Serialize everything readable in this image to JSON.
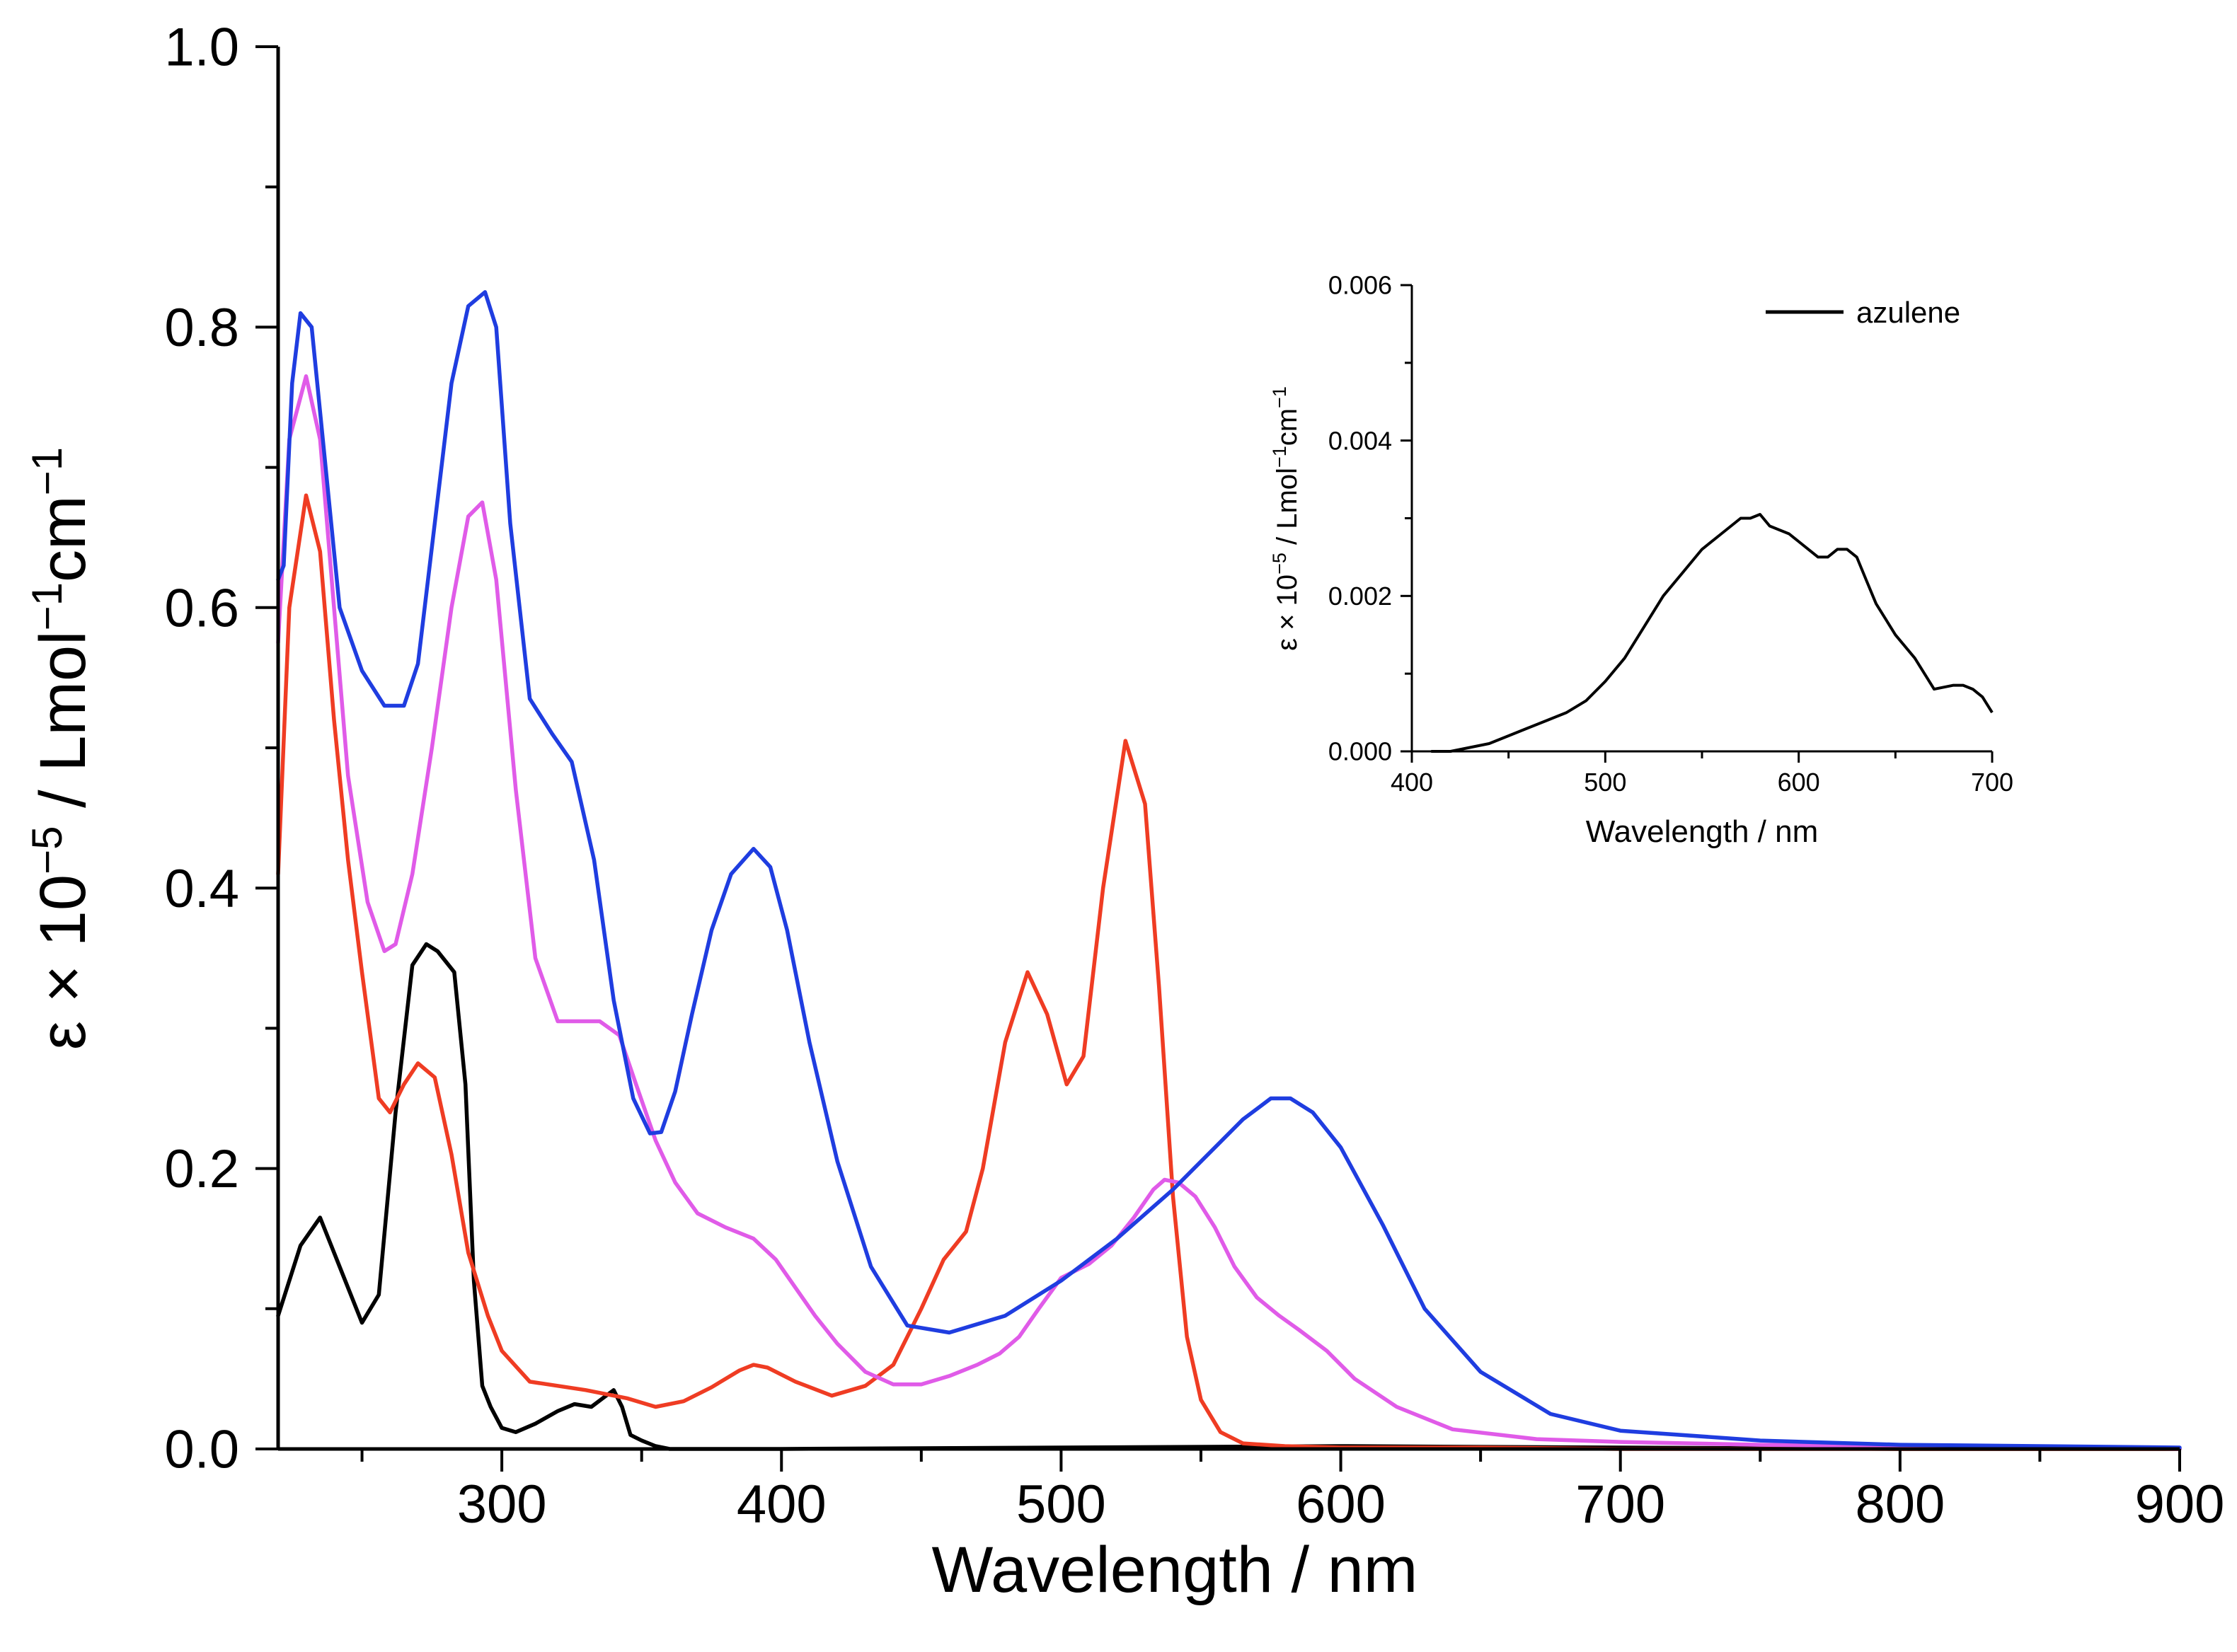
{
  "chart_data": [
    {
      "type": "line",
      "xlabel": "Wavelength / nm",
      "ylabel": "ε × 10−5 / Lmol−1cm−1",
      "ylabel_parts": [
        "ε × 10",
        "−5",
        " / Lmol",
        "−1",
        "cm",
        "−1"
      ],
      "xlim": [
        220,
        900
      ],
      "ylim": [
        0,
        1.0
      ],
      "xticks": [
        300,
        400,
        500,
        600,
        700,
        800,
        900
      ],
      "xtick_labels": [
        "300",
        "400",
        "500",
        "600",
        "700",
        "800",
        "900"
      ],
      "yticks": [
        0,
        0.2,
        0.4,
        0.6,
        0.8,
        1.0
      ],
      "ytick_labels": [
        "0.0",
        "0.2",
        "0.4",
        "0.6",
        "0.8",
        "1.0"
      ],
      "grid": false,
      "series": [
        {
          "name": "black",
          "color": "#000000",
          "x": [
            220,
            228,
            235,
            242,
            250,
            256,
            262,
            268,
            273,
            277,
            283,
            287,
            290,
            293,
            296,
            300,
            305,
            312,
            320,
            326,
            332,
            336,
            340,
            343,
            346,
            350,
            355,
            360,
            400,
            500,
            600,
            700,
            800,
            900
          ],
          "y": [
            0.095,
            0.145,
            0.165,
            0.13,
            0.09,
            0.11,
            0.24,
            0.345,
            0.36,
            0.355,
            0.34,
            0.26,
            0.12,
            0.045,
            0.03,
            0.015,
            0.012,
            0.018,
            0.027,
            0.032,
            0.03,
            0.036,
            0.042,
            0.03,
            0.01,
            0.006,
            0.002,
            0.0,
            0.0,
            0.001,
            0.002,
            0.001,
            0.0,
            0.0
          ]
        },
        {
          "name": "red",
          "color": "#ef3c23",
          "x": [
            220,
            224,
            230,
            235,
            240,
            245,
            250,
            256,
            260,
            265,
            270,
            276,
            282,
            288,
            295,
            300,
            310,
            320,
            330,
            345,
            355,
            365,
            375,
            385,
            390,
            395,
            405,
            418,
            430,
            440,
            450,
            458,
            466,
            472,
            480,
            488,
            495,
            502,
            508,
            515,
            523,
            530,
            535,
            540,
            545,
            550,
            557,
            565,
            580,
            600,
            650,
            700,
            800,
            900
          ],
          "y": [
            0.41,
            0.6,
            0.68,
            0.64,
            0.52,
            0.42,
            0.34,
            0.25,
            0.24,
            0.26,
            0.275,
            0.265,
            0.21,
            0.14,
            0.095,
            0.07,
            0.048,
            0.045,
            0.042,
            0.036,
            0.03,
            0.034,
            0.044,
            0.056,
            0.06,
            0.058,
            0.048,
            0.038,
            0.045,
            0.06,
            0.1,
            0.135,
            0.155,
            0.2,
            0.29,
            0.34,
            0.31,
            0.26,
            0.28,
            0.4,
            0.505,
            0.46,
            0.33,
            0.18,
            0.08,
            0.035,
            0.012,
            0.004,
            0.002,
            0.001,
            0.001,
            0.0,
            0.0,
            0.0
          ]
        },
        {
          "name": "magenta",
          "color": "#e05be8",
          "x": [
            220,
            224,
            230,
            235,
            240,
            245,
            252,
            258,
            262,
            268,
            275,
            282,
            288,
            293,
            298,
            305,
            312,
            320,
            328,
            335,
            342,
            348,
            355,
            362,
            370,
            380,
            390,
            398,
            405,
            412,
            420,
            430,
            440,
            450,
            460,
            470,
            478,
            485,
            492,
            500,
            510,
            518,
            526,
            533,
            537,
            542,
            548,
            555,
            562,
            570,
            578,
            585,
            595,
            605,
            620,
            640,
            670,
            700,
            750,
            800,
            850,
            900
          ],
          "y": [
            0.575,
            0.72,
            0.765,
            0.72,
            0.6,
            0.48,
            0.39,
            0.355,
            0.36,
            0.41,
            0.5,
            0.6,
            0.665,
            0.675,
            0.62,
            0.47,
            0.35,
            0.305,
            0.305,
            0.305,
            0.295,
            0.26,
            0.22,
            0.19,
            0.168,
            0.158,
            0.15,
            0.135,
            0.115,
            0.095,
            0.075,
            0.055,
            0.046,
            0.046,
            0.052,
            0.06,
            0.068,
            0.08,
            0.1,
            0.122,
            0.132,
            0.145,
            0.165,
            0.185,
            0.192,
            0.19,
            0.18,
            0.158,
            0.13,
            0.108,
            0.095,
            0.085,
            0.07,
            0.05,
            0.03,
            0.014,
            0.007,
            0.005,
            0.003,
            0.002,
            0.001,
            0.0
          ]
        },
        {
          "name": "blue",
          "color": "#1f3de0",
          "x": [
            220,
            222,
            225,
            228,
            232,
            236,
            242,
            250,
            258,
            265,
            270,
            276,
            282,
            288,
            294,
            298,
            303,
            310,
            318,
            325,
            333,
            340,
            347,
            353,
            357,
            362,
            368,
            375,
            382,
            390,
            396,
            402,
            410,
            420,
            432,
            445,
            460,
            480,
            500,
            520,
            540,
            555,
            565,
            575,
            582,
            590,
            600,
            615,
            630,
            650,
            675,
            700,
            750,
            800,
            850,
            900
          ],
          "y": [
            0.62,
            0.63,
            0.76,
            0.81,
            0.8,
            0.72,
            0.6,
            0.555,
            0.53,
            0.53,
            0.56,
            0.66,
            0.76,
            0.815,
            0.825,
            0.8,
            0.66,
            0.535,
            0.51,
            0.49,
            0.42,
            0.32,
            0.25,
            0.225,
            0.226,
            0.255,
            0.31,
            0.37,
            0.41,
            0.428,
            0.415,
            0.37,
            0.29,
            0.205,
            0.13,
            0.088,
            0.083,
            0.095,
            0.12,
            0.15,
            0.185,
            0.215,
            0.235,
            0.25,
            0.25,
            0.24,
            0.215,
            0.16,
            0.1,
            0.055,
            0.025,
            0.013,
            0.006,
            0.003,
            0.002,
            0.001
          ]
        }
      ]
    },
    {
      "type": "line",
      "inset": true,
      "xlabel": "Wavelength / nm",
      "ylabel": "ε × 10−5 / Lmol−1cm−1",
      "ylabel_parts": [
        "ε × 10",
        "−5",
        " / Lmol",
        "−1",
        "cm",
        "−1"
      ],
      "xlim": [
        400,
        700
      ],
      "ylim": [
        0,
        0.006
      ],
      "xticks": [
        400,
        500,
        600,
        700
      ],
      "xtick_labels": [
        "400",
        "500",
        "600",
        "700"
      ],
      "yticks": [
        0,
        0.002,
        0.004,
        0.006
      ],
      "ytick_labels": [
        "0.000",
        "0.002",
        "0.004",
        "0.006"
      ],
      "legend": [
        "azulene"
      ],
      "legend_position": "top-right",
      "series": [
        {
          "name": "azulene",
          "color": "#000000",
          "x": [
            410,
            420,
            430,
            440,
            450,
            460,
            470,
            480,
            490,
            500,
            510,
            520,
            530,
            540,
            550,
            560,
            565,
            570,
            575,
            580,
            585,
            590,
            595,
            600,
            605,
            610,
            615,
            620,
            625,
            630,
            635,
            640,
            645,
            650,
            660,
            670,
            680,
            685,
            690,
            695,
            700
          ],
          "y": [
            0.0,
            0.0,
            5e-05,
            0.0001,
            0.0002,
            0.0003,
            0.0004,
            0.0005,
            0.00065,
            0.0009,
            0.0012,
            0.0016,
            0.002,
            0.0023,
            0.0026,
            0.0028,
            0.0029,
            0.003,
            0.003,
            0.00305,
            0.0029,
            0.00285,
            0.0028,
            0.0027,
            0.0026,
            0.0025,
            0.0025,
            0.0026,
            0.0026,
            0.0025,
            0.0022,
            0.0019,
            0.0017,
            0.0015,
            0.0012,
            0.0008,
            0.00085,
            0.00085,
            0.0008,
            0.0007,
            0.0005
          ]
        }
      ]
    }
  ]
}
